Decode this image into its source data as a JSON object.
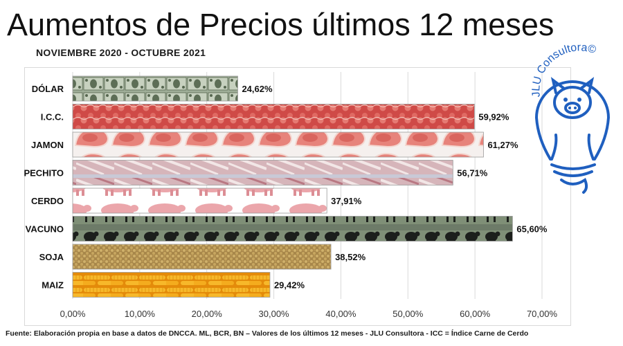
{
  "header": {
    "title": "Aumentos de Precios últimos 12 meses",
    "subtitle": "NOVIEMBRE 2020 - OCTUBRE 2021"
  },
  "logo": {
    "text": "JLU Consultora©"
  },
  "footer": {
    "source": "Fuente: Elaboración propia en base a datos de DNCCA. ML, BCR, BN – Valores de los últimos 12 meses - JLU Consultora  - ICC = Índice Carne de Cerdo"
  },
  "chart_data": {
    "type": "bar",
    "orientation": "horizontal",
    "categories": [
      "DÓLAR",
      "I.C.C.",
      "JAMON",
      "PECHITO",
      "CERDO",
      "VACUNO",
      "SOJA",
      "MAIZ"
    ],
    "values": [
      24.62,
      59.92,
      61.27,
      56.71,
      37.91,
      65.6,
      38.52,
      29.42
    ],
    "value_labels": [
      "24,62%",
      "59,92%",
      "61,27%",
      "56,71%",
      "37,91%",
      "65,60%",
      "38,52%",
      "29,42%"
    ],
    "xlim": [
      0,
      70
    ],
    "x_ticks": [
      0,
      10,
      20,
      30,
      40,
      50,
      60,
      70
    ],
    "x_tick_labels": [
      "0,00%",
      "10,00%",
      "20,00%",
      "30,00%",
      "40,00%",
      "50,00%",
      "60,00%",
      "70,00%"
    ],
    "grid": "vertical",
    "bar_fills": [
      "dollar-bills",
      "pork-meat",
      "ham-slices",
      "ribs",
      "pig",
      "cattle",
      "soybeans",
      "corn"
    ],
    "colors": {
      "dollar-bills": "#8fa08a",
      "pork-meat": "#d9534f",
      "ham-slices": "#e98b84",
      "ribs": "#c98a92",
      "pig": "#e7a0a6",
      "cattle": "#2f3a2f",
      "soybeans": "#b89a55",
      "corn": "#f2a81d"
    }
  }
}
